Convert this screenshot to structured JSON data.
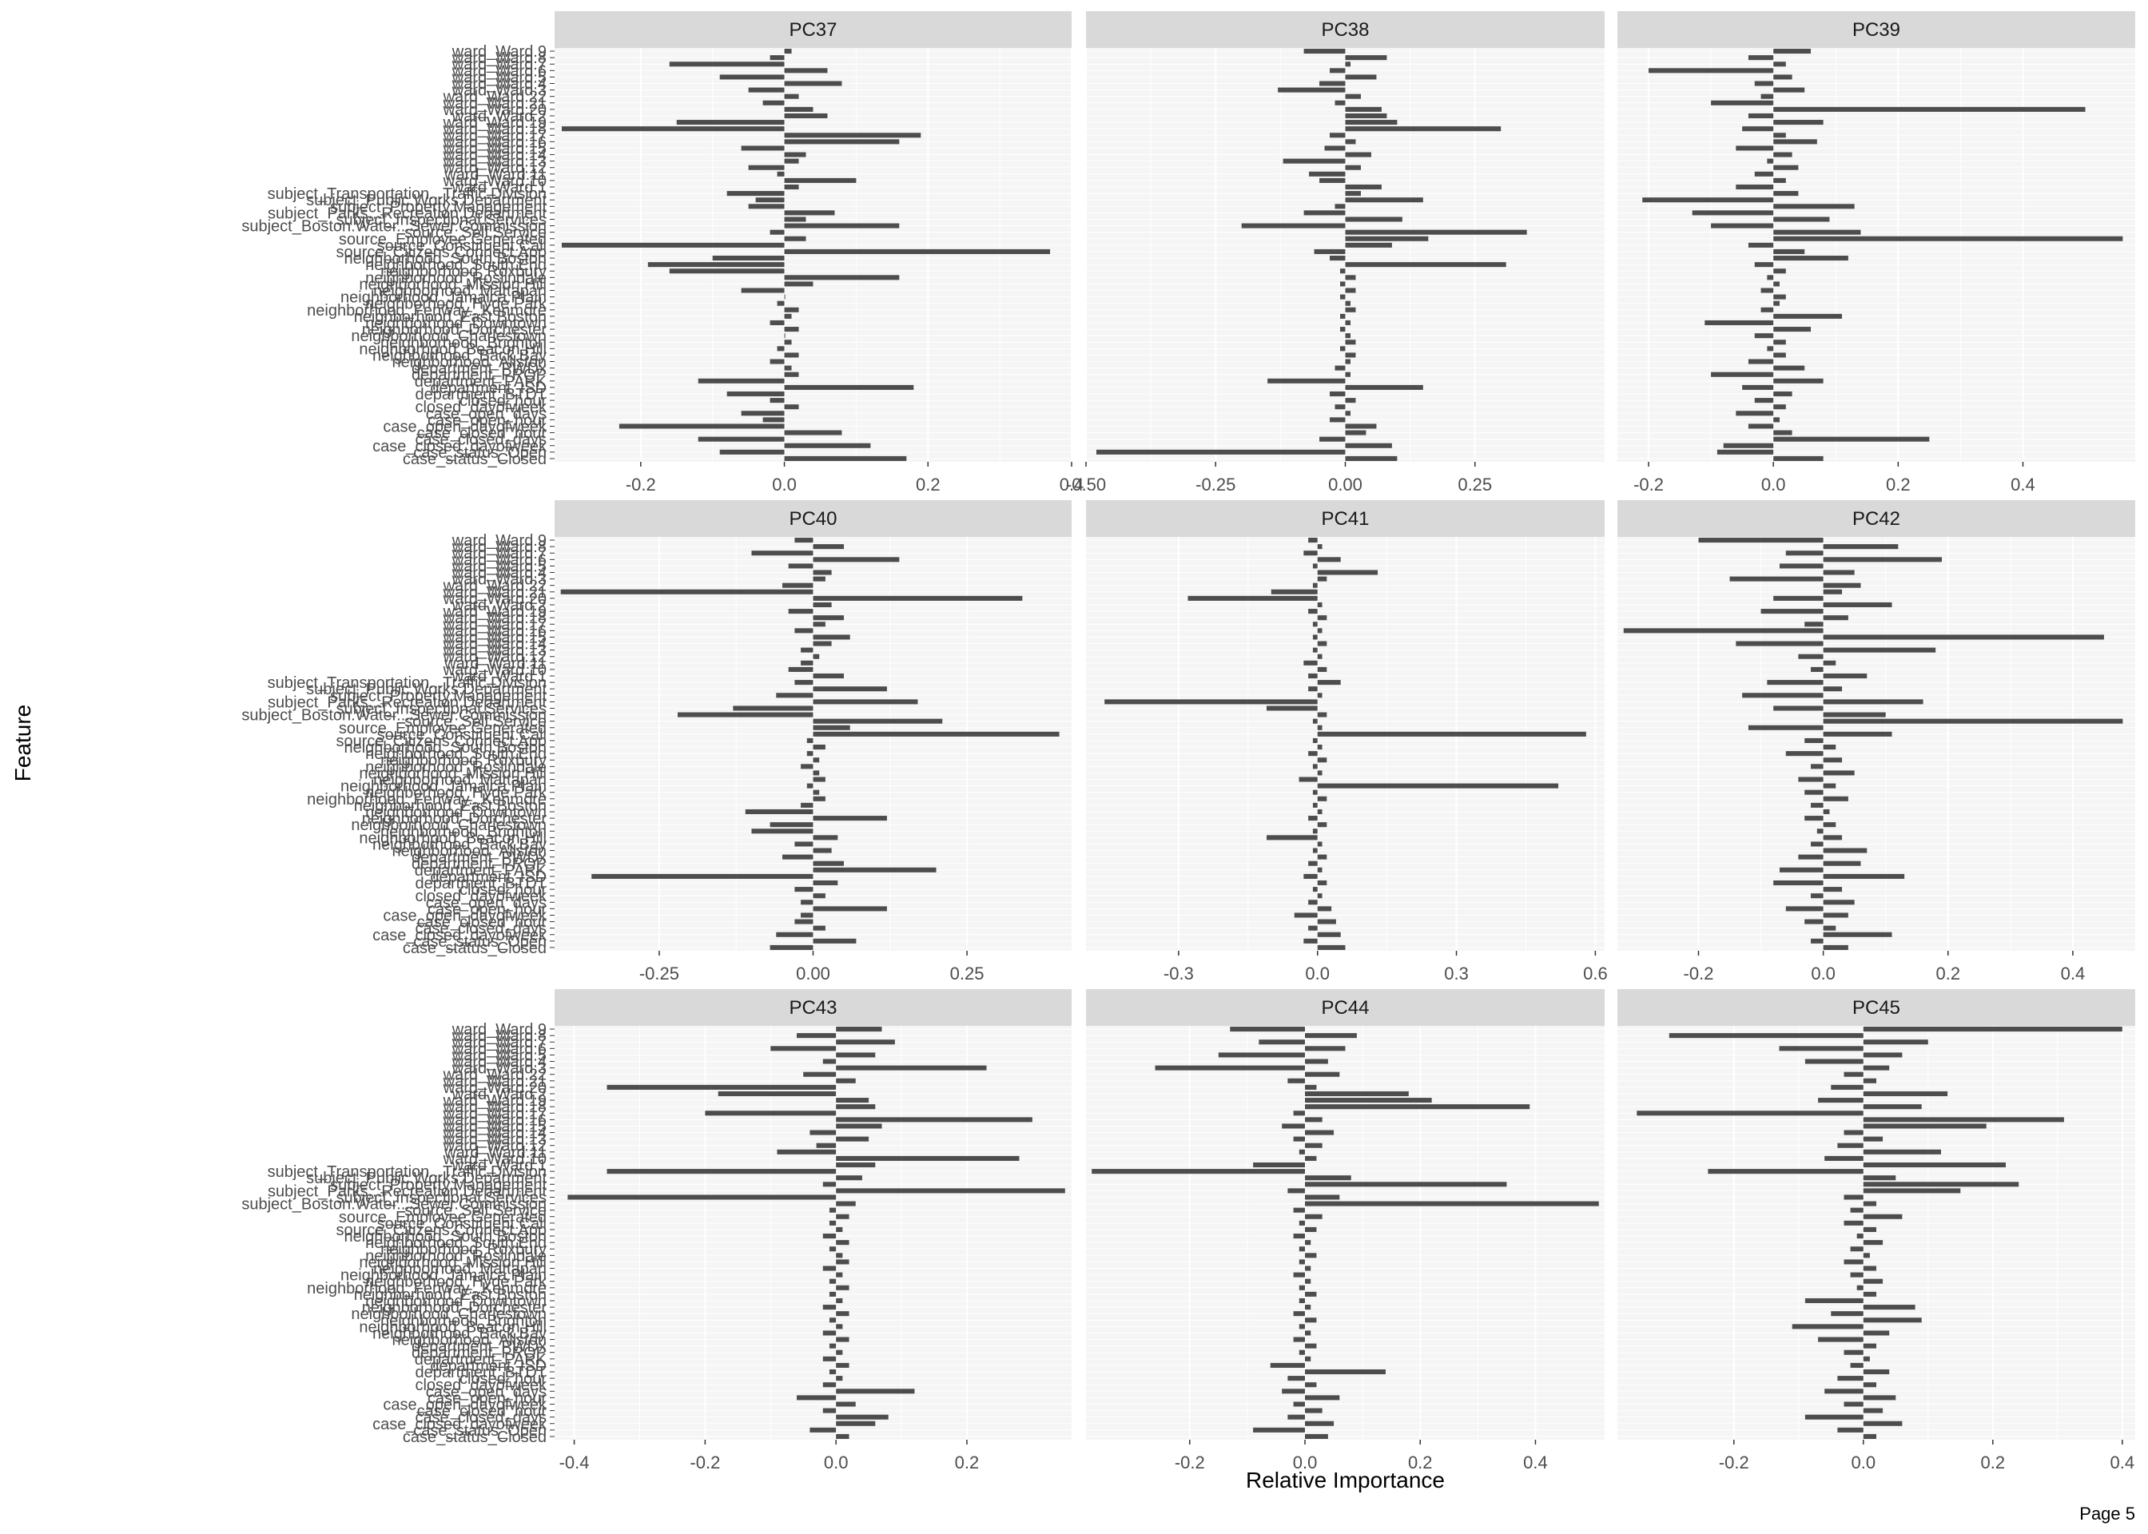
{
  "page": {
    "footer": "Page 5"
  },
  "colors": {
    "panel_bg": "#f5f5f5",
    "strip_bg": "#d9d9d9",
    "bar": "#4d4d4d",
    "grid_major": "#ffffff",
    "grid_minor": "#fafafa"
  },
  "chart_data": {
    "type": "bar",
    "orientation": "horizontal",
    "xlabel": "Relative Importance",
    "ylabel": "Feature",
    "grid": true,
    "legend": "none",
    "features": [
      "ward_Ward.9",
      "ward_Ward.8",
      "ward_Ward.7",
      "ward_Ward.6",
      "ward_Ward.5",
      "ward_Ward.4",
      "ward_Ward.3",
      "ward_Ward.22",
      "ward_Ward.21",
      "ward_Ward.20",
      "ward_Ward.2",
      "ward_Ward.19",
      "ward_Ward.18",
      "ward_Ward.17",
      "ward_Ward.16",
      "ward_Ward.15",
      "ward_Ward.14",
      "ward_Ward.13",
      "ward_Ward.12",
      "ward_Ward.11",
      "ward_Ward.10",
      "ward_Ward.1",
      "subject_Transportation...Traffic.Division",
      "subject_Public.Works.Department",
      "subject_Property.Management",
      "subject_Parks...Recreation.Department",
      "subject_Inspectional.Services",
      "subject_Boston.Water...Sewer.Commission",
      "source_Self.Service",
      "source_Employee.Generated",
      "source_Constituent.Call",
      "source_Citizens.Connect.App",
      "neighborhood_South.Boston",
      "neighborhood_South.End",
      "neighborhood_Roxbury",
      "neighborhood_Roslindale",
      "neighborhood_Mission.Hill",
      "neighborhood_Mattapan",
      "neighborhood_Jamaica.Plain",
      "neighborhood_Hyde.Park",
      "neighborhood_Fenway...Kenmore",
      "neighborhood_East.Boston",
      "neighborhood_Downtown",
      "neighborhood_Dorchester",
      "neighborhood_Charlestown",
      "neighborhood_Brighton",
      "neighborhood_Beacon.Hill",
      "neighborhood_Back.Bay",
      "neighborhood_Allston",
      "department_PWDx",
      "department_PROP",
      "department_PARK",
      "department_ISD",
      "department_BTDT",
      "closed_hour",
      "closed_dayofweek",
      "case_open_days",
      "case_open_hour",
      "case_open_dayofweek",
      "case_closed_hour",
      "case_closed_days",
      "case_closed_dayofweek",
      "case_status_Open",
      "case_status_Closed"
    ],
    "y_tick_labels": [
      "ward_Ward.9",
      "subject_Transportation...Traffic.Division",
      "subject_Public.Works.Department",
      "subject_Boston.Water...Sewer.Commission",
      "source_Citizens.Connect.App",
      "source_Self.Service",
      "neighborhood_South.Boston",
      "neighborhood_Fenway...Kenmore",
      "neighborhood_Dorchester",
      "neighborhood_Back.Bay",
      "case_closed_dayofweek"
    ],
    "panels": [
      {
        "name": "PC37",
        "xlim": [
          -0.32,
          0.4
        ],
        "ticks": [
          -0.2,
          0.0,
          0.2,
          0.4
        ],
        "tick_labels": [
          "-0.2",
          "0.0",
          "0.2",
          "0.4"
        ],
        "values": [
          0.01,
          -0.02,
          -0.16,
          0.06,
          -0.09,
          0.08,
          -0.05,
          0.02,
          -0.03,
          0.04,
          0.06,
          -0.15,
          -0.31,
          0.19,
          0.16,
          -0.06,
          0.03,
          0.02,
          -0.05,
          -0.01,
          0.1,
          0.02,
          -0.08,
          -0.04,
          -0.05,
          0.07,
          0.03,
          0.16,
          -0.02,
          0.03,
          -0.31,
          0.37,
          -0.1,
          -0.19,
          -0.16,
          0.16,
          0.04,
          -0.06,
          0.0,
          -0.01,
          0.02,
          0.01,
          -0.02,
          0.02,
          0.0,
          0.01,
          -0.01,
          0.02,
          -0.02,
          0.01,
          0.02,
          -0.12,
          0.18,
          -0.08,
          -0.02,
          0.02,
          -0.06,
          -0.03,
          -0.23,
          0.08,
          -0.12,
          0.12,
          -0.09,
          0.17
        ]
      },
      {
        "name": "PC38",
        "xlim": [
          -0.5,
          0.5
        ],
        "ticks": [
          -0.5,
          -0.25,
          0.0,
          0.25
        ],
        "tick_labels": [
          "-0.50",
          "-0.25",
          "0.00",
          "0.25"
        ],
        "values": [
          -0.08,
          0.08,
          0.01,
          -0.03,
          0.06,
          -0.05,
          -0.13,
          0.03,
          -0.02,
          0.07,
          0.08,
          0.1,
          0.3,
          -0.03,
          0.02,
          -0.04,
          0.05,
          -0.12,
          0.03,
          -0.07,
          -0.05,
          0.07,
          0.03,
          0.15,
          -0.02,
          -0.08,
          0.11,
          -0.2,
          0.35,
          0.16,
          0.09,
          -0.06,
          -0.03,
          0.31,
          -0.01,
          0.02,
          -0.01,
          0.02,
          -0.01,
          0.01,
          0.02,
          -0.01,
          0.01,
          -0.01,
          0.01,
          0.02,
          -0.01,
          0.02,
          0.01,
          -0.02,
          0.01,
          -0.15,
          0.15,
          -0.03,
          0.02,
          -0.02,
          0.01,
          -0.03,
          0.06,
          0.04,
          -0.05,
          0.09,
          -0.48,
          0.1
        ]
      },
      {
        "name": "PC39",
        "xlim": [
          -0.25,
          0.58
        ],
        "ticks": [
          -0.2,
          0.0,
          0.2,
          0.4
        ],
        "tick_labels": [
          "-0.2",
          "0.0",
          "0.2",
          "0.4"
        ],
        "values": [
          0.06,
          -0.04,
          0.02,
          -0.2,
          0.03,
          -0.03,
          0.05,
          -0.02,
          -0.1,
          0.5,
          -0.04,
          0.08,
          -0.05,
          0.02,
          0.07,
          -0.06,
          0.03,
          -0.01,
          0.04,
          -0.03,
          0.02,
          -0.06,
          0.04,
          -0.21,
          0.13,
          -0.13,
          0.09,
          -0.1,
          0.14,
          0.56,
          -0.04,
          0.05,
          0.12,
          -0.03,
          0.02,
          -0.01,
          0.01,
          -0.02,
          0.02,
          0.01,
          -0.02,
          0.11,
          -0.11,
          0.06,
          -0.03,
          0.02,
          -0.01,
          0.02,
          -0.04,
          0.05,
          -0.1,
          0.08,
          -0.05,
          0.03,
          -0.03,
          0.02,
          -0.06,
          0.01,
          -0.04,
          0.03,
          0.25,
          -0.08,
          -0.09,
          0.08
        ]
      },
      {
        "name": "PC40",
        "xlim": [
          -0.42,
          0.42
        ],
        "ticks": [
          -0.25,
          0.0,
          0.25
        ],
        "tick_labels": [
          "-0.25",
          "0.00",
          "0.25"
        ],
        "values": [
          -0.03,
          0.05,
          -0.1,
          0.14,
          -0.04,
          0.03,
          0.02,
          -0.05,
          -0.41,
          0.34,
          0.03,
          -0.04,
          0.05,
          0.02,
          -0.03,
          0.06,
          0.03,
          -0.02,
          0.01,
          -0.02,
          -0.04,
          0.05,
          -0.03,
          0.12,
          -0.06,
          0.17,
          -0.13,
          -0.22,
          0.21,
          0.06,
          0.4,
          -0.01,
          0.02,
          -0.01,
          0.01,
          -0.02,
          0.01,
          0.02,
          -0.01,
          0.01,
          0.02,
          -0.02,
          -0.11,
          0.12,
          -0.07,
          -0.1,
          0.04,
          -0.03,
          0.03,
          -0.05,
          0.05,
          0.2,
          -0.36,
          0.04,
          -0.03,
          0.02,
          -0.02,
          0.12,
          -0.02,
          -0.03,
          0.02,
          -0.06,
          0.07,
          -0.07
        ]
      },
      {
        "name": "PC41",
        "xlim": [
          -0.5,
          0.62
        ],
        "ticks": [
          -0.3,
          0.0,
          0.3,
          0.6
        ],
        "tick_labels": [
          "-0.3",
          "0.0",
          "0.3",
          "0.6"
        ],
        "values": [
          -0.02,
          0.01,
          -0.03,
          0.05,
          -0.01,
          0.13,
          0.02,
          -0.01,
          -0.1,
          -0.28,
          0.01,
          -0.02,
          0.02,
          -0.01,
          0.01,
          -0.01,
          0.02,
          -0.01,
          0.01,
          -0.03,
          0.02,
          -0.02,
          0.05,
          -0.02,
          0.01,
          -0.46,
          -0.11,
          0.02,
          -0.01,
          0.01,
          0.58,
          -0.01,
          0.01,
          -0.02,
          0.02,
          -0.01,
          0.01,
          -0.04,
          0.52,
          -0.01,
          0.02,
          -0.01,
          0.01,
          -0.02,
          0.02,
          -0.01,
          -0.11,
          0.01,
          -0.01,
          0.02,
          -0.02,
          0.01,
          -0.03,
          0.02,
          -0.01,
          0.01,
          -0.02,
          0.03,
          -0.05,
          0.04,
          -0.02,
          0.05,
          -0.03,
          0.06
        ]
      },
      {
        "name": "PC42",
        "xlim": [
          -0.33,
          0.5
        ],
        "ticks": [
          -0.2,
          0.0,
          0.2,
          0.4
        ],
        "tick_labels": [
          "-0.2",
          "0.0",
          "0.2",
          "0.4"
        ],
        "values": [
          -0.2,
          0.12,
          -0.06,
          0.19,
          -0.07,
          0.05,
          -0.15,
          0.06,
          0.03,
          -0.08,
          0.11,
          -0.1,
          0.04,
          -0.03,
          -0.32,
          0.45,
          -0.14,
          0.18,
          -0.04,
          0.02,
          -0.02,
          0.07,
          -0.09,
          0.03,
          -0.13,
          0.16,
          -0.08,
          0.1,
          0.48,
          -0.12,
          0.11,
          -0.03,
          0.02,
          -0.06,
          0.03,
          -0.02,
          0.05,
          -0.04,
          0.02,
          -0.03,
          0.04,
          -0.02,
          0.01,
          -0.03,
          0.02,
          -0.01,
          0.03,
          -0.02,
          0.07,
          -0.04,
          0.06,
          -0.07,
          0.13,
          -0.08,
          0.03,
          -0.02,
          0.05,
          -0.06,
          0.04,
          -0.03,
          0.02,
          0.11,
          -0.02,
          0.04
        ]
      },
      {
        "name": "PC43",
        "xlim": [
          -0.43,
          0.36
        ],
        "ticks": [
          -0.4,
          -0.2,
          0.0,
          0.2
        ],
        "tick_labels": [
          "-0.4",
          "-0.2",
          "0.0",
          "0.2"
        ],
        "values": [
          0.07,
          -0.06,
          0.09,
          -0.1,
          0.06,
          -0.02,
          0.23,
          -0.05,
          0.03,
          -0.35,
          -0.18,
          0.05,
          0.06,
          -0.2,
          0.3,
          0.07,
          -0.04,
          0.05,
          -0.03,
          -0.09,
          0.28,
          0.06,
          -0.35,
          0.04,
          -0.02,
          0.35,
          -0.41,
          0.03,
          -0.01,
          0.02,
          -0.01,
          0.01,
          -0.02,
          0.02,
          -0.01,
          0.01,
          0.02,
          -0.02,
          0.01,
          -0.01,
          0.02,
          -0.01,
          0.01,
          -0.02,
          0.02,
          -0.01,
          0.01,
          -0.02,
          0.02,
          -0.01,
          0.01,
          -0.02,
          0.02,
          -0.01,
          0.01,
          -0.02,
          0.12,
          -0.06,
          0.03,
          -0.02,
          0.08,
          0.06,
          -0.04,
          0.02
        ]
      },
      {
        "name": "PC44",
        "xlim": [
          -0.38,
          0.52
        ],
        "ticks": [
          -0.2,
          0.0,
          0.2,
          0.4
        ],
        "tick_labels": [
          "-0.2",
          "0.0",
          "0.2",
          "0.4"
        ],
        "values": [
          -0.13,
          0.09,
          -0.08,
          0.07,
          -0.15,
          0.04,
          -0.26,
          0.06,
          -0.03,
          0.02,
          0.18,
          0.22,
          0.39,
          -0.02,
          0.03,
          -0.04,
          0.05,
          -0.02,
          0.03,
          -0.01,
          0.02,
          -0.09,
          -0.37,
          0.08,
          0.35,
          -0.03,
          0.06,
          0.51,
          -0.02,
          0.03,
          -0.01,
          0.02,
          -0.02,
          0.01,
          -0.01,
          0.02,
          -0.01,
          0.01,
          -0.02,
          0.01,
          -0.01,
          0.02,
          -0.01,
          0.01,
          -0.02,
          0.02,
          -0.01,
          0.01,
          -0.02,
          0.02,
          -0.01,
          0.01,
          -0.06,
          0.14,
          -0.03,
          0.02,
          -0.04,
          0.06,
          -0.02,
          0.03,
          -0.03,
          0.05,
          -0.09,
          0.04
        ]
      },
      {
        "name": "PC45",
        "xlim": [
          -0.38,
          0.42
        ],
        "ticks": [
          -0.2,
          0.0,
          0.2,
          0.4
        ],
        "tick_labels": [
          "-0.2",
          "0.0",
          "0.2",
          "0.4"
        ],
        "values": [
          0.4,
          -0.3,
          0.1,
          -0.13,
          0.06,
          -0.09,
          0.04,
          -0.03,
          0.02,
          -0.05,
          0.13,
          -0.07,
          0.09,
          -0.35,
          0.31,
          0.19,
          -0.03,
          0.03,
          -0.04,
          0.12,
          -0.06,
          0.22,
          -0.24,
          0.05,
          0.24,
          0.15,
          -0.03,
          0.02,
          -0.02,
          0.06,
          -0.03,
          0.02,
          -0.01,
          0.03,
          -0.02,
          0.01,
          -0.03,
          0.02,
          -0.02,
          0.03,
          -0.01,
          0.02,
          -0.09,
          0.08,
          -0.05,
          0.09,
          -0.11,
          0.04,
          -0.07,
          0.02,
          -0.03,
          0.01,
          -0.02,
          0.04,
          -0.04,
          0.02,
          -0.06,
          0.05,
          -0.03,
          0.03,
          -0.09,
          0.06,
          -0.04,
          0.02
        ]
      }
    ]
  }
}
